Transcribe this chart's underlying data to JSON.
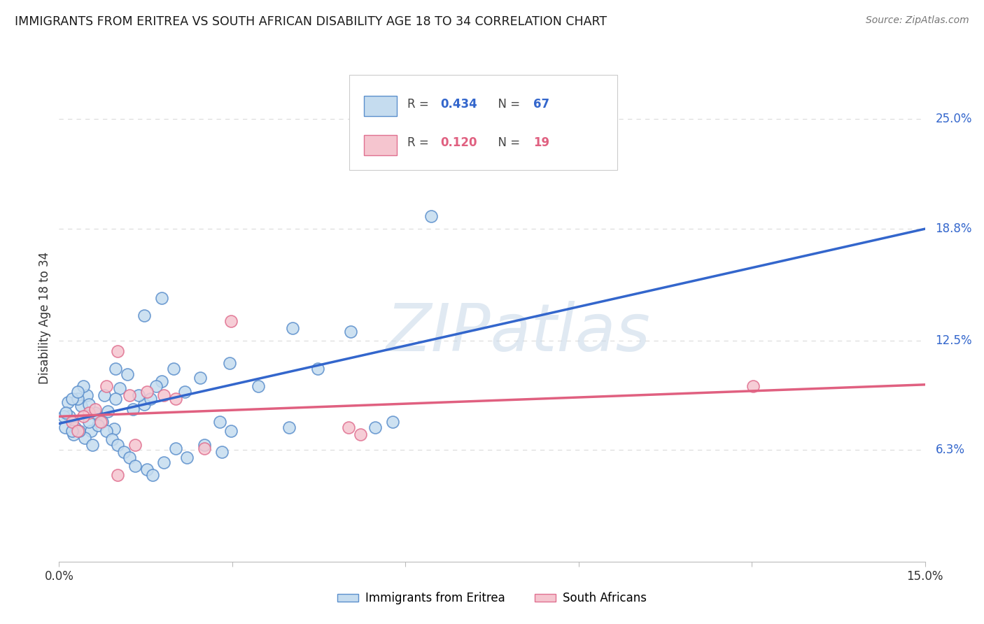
{
  "title": "IMMIGRANTS FROM ERITREA VS SOUTH AFRICAN DISABILITY AGE 18 TO 34 CORRELATION CHART",
  "source": "Source: ZipAtlas.com",
  "ylabel": "Disability Age 18 to 34",
  "xlim": [
    0.0,
    15.0
  ],
  "ylim": [
    0.0,
    27.5
  ],
  "ytick_values": [
    6.3,
    12.5,
    18.8,
    25.0
  ],
  "ytick_labels": [
    "6.3%",
    "12.5%",
    "18.8%",
    "25.0%"
  ],
  "xtick_values": [
    0.0,
    3.0,
    6.0,
    9.0,
    12.0,
    15.0
  ],
  "xtick_labels": [
    "0.0%",
    "",
    "",
    "",
    "",
    "15.0%"
  ],
  "legend_blue_R": "0.434",
  "legend_blue_N": "67",
  "legend_blue_label": "Immigrants from Eritrea",
  "legend_pink_R": "0.120",
  "legend_pink_N": "19",
  "legend_pink_label": "South Africans",
  "watermark": "ZIPatlas",
  "blue_face": "#C5DCEF",
  "blue_edge": "#5B8FCC",
  "pink_face": "#F5C5CF",
  "pink_edge": "#E07090",
  "blue_line": "#3366CC",
  "pink_line": "#E06080",
  "grid_color": "#DDDDDD",
  "bg": "#FFFFFF",
  "blue_pts": [
    [
      0.18,
      8.2
    ],
    [
      0.28,
      7.6
    ],
    [
      0.38,
      8.8
    ],
    [
      0.48,
      9.4
    ],
    [
      0.55,
      7.4
    ],
    [
      0.65,
      8.3
    ],
    [
      0.75,
      7.9
    ],
    [
      0.85,
      8.5
    ],
    [
      0.95,
      7.5
    ],
    [
      1.05,
      9.8
    ],
    [
      0.45,
      7.0
    ],
    [
      0.25,
      7.2
    ],
    [
      0.58,
      6.6
    ],
    [
      0.35,
      7.4
    ],
    [
      0.68,
      7.7
    ],
    [
      0.78,
      9.4
    ],
    [
      0.98,
      9.2
    ],
    [
      1.18,
      10.6
    ],
    [
      1.48,
      8.9
    ],
    [
      1.78,
      10.2
    ],
    [
      1.98,
      10.9
    ],
    [
      2.18,
      9.6
    ],
    [
      0.08,
      8.2
    ],
    [
      0.15,
      9.0
    ],
    [
      0.1,
      7.6
    ],
    [
      0.22,
      7.4
    ],
    [
      0.32,
      9.2
    ],
    [
      0.42,
      9.9
    ],
    [
      0.52,
      7.9
    ],
    [
      0.62,
      8.4
    ],
    [
      1.28,
      8.6
    ],
    [
      1.38,
      9.4
    ],
    [
      1.58,
      9.2
    ],
    [
      1.68,
      9.9
    ],
    [
      2.45,
      10.4
    ],
    [
      2.95,
      11.2
    ],
    [
      3.45,
      9.9
    ],
    [
      4.05,
      13.2
    ],
    [
      4.48,
      10.9
    ],
    [
      5.05,
      13.0
    ],
    [
      0.82,
      7.4
    ],
    [
      0.92,
      6.9
    ],
    [
      1.02,
      6.6
    ],
    [
      1.12,
      6.2
    ],
    [
      1.22,
      5.9
    ],
    [
      1.32,
      5.4
    ],
    [
      1.52,
      5.2
    ],
    [
      1.62,
      4.9
    ],
    [
      1.82,
      5.6
    ],
    [
      2.02,
      6.4
    ],
    [
      2.22,
      5.9
    ],
    [
      2.52,
      6.6
    ],
    [
      2.82,
      6.2
    ],
    [
      0.12,
      8.4
    ],
    [
      0.22,
      9.2
    ],
    [
      0.32,
      9.6
    ],
    [
      0.52,
      8.9
    ],
    [
      0.98,
      10.9
    ],
    [
      1.48,
      13.9
    ],
    [
      1.78,
      14.9
    ],
    [
      2.98,
      7.4
    ],
    [
      5.48,
      7.6
    ],
    [
      5.78,
      7.9
    ],
    [
      9.48,
      24.0
    ],
    [
      6.45,
      19.5
    ],
    [
      3.98,
      7.6
    ],
    [
      2.78,
      7.9
    ]
  ],
  "pink_pts": [
    [
      0.22,
      7.9
    ],
    [
      0.32,
      7.4
    ],
    [
      0.52,
      8.4
    ],
    [
      0.82,
      9.9
    ],
    [
      1.02,
      11.9
    ],
    [
      1.22,
      9.4
    ],
    [
      1.52,
      9.6
    ],
    [
      1.82,
      9.4
    ],
    [
      2.02,
      9.2
    ],
    [
      2.98,
      13.6
    ],
    [
      5.02,
      7.6
    ],
    [
      5.22,
      7.2
    ],
    [
      12.02,
      9.9
    ],
    [
      0.42,
      8.2
    ],
    [
      0.62,
      8.6
    ],
    [
      0.72,
      7.9
    ],
    [
      1.32,
      6.6
    ],
    [
      2.52,
      6.4
    ],
    [
      1.02,
      4.9
    ]
  ],
  "blue_trend_x": [
    0.0,
    15.0
  ],
  "blue_trend_y": [
    7.8,
    18.8
  ],
  "pink_trend_x": [
    0.0,
    15.0
  ],
  "pink_trend_y": [
    8.2,
    10.0
  ]
}
